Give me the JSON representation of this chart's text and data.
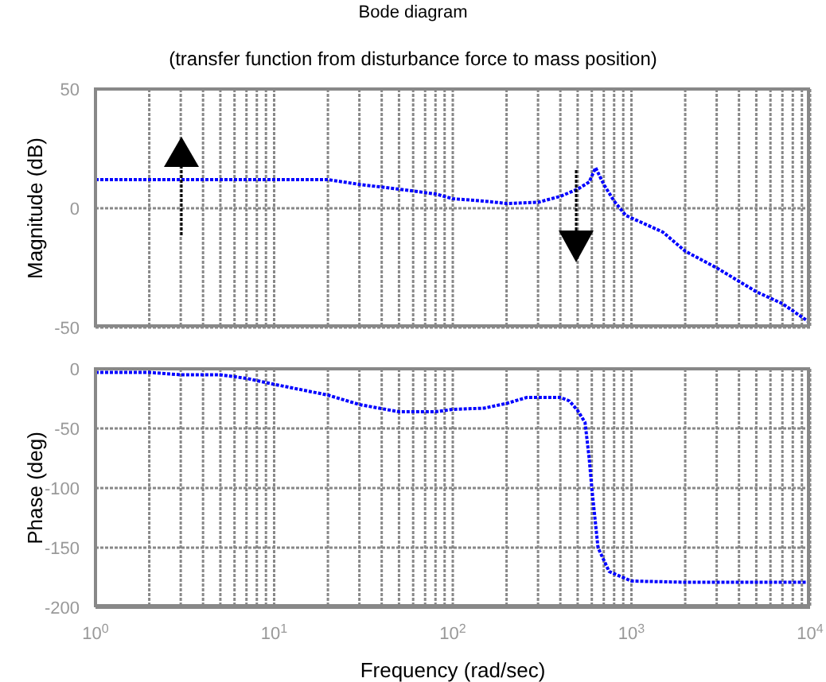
{
  "chart_data": [
    {
      "type": "line",
      "title": "Bode diagram",
      "subtitle": "(transfer function from disturbance force to mass position)",
      "ylabel": "Magnitude (dB)",
      "log": "x",
      "grid": true,
      "tick_labels": "y",
      "line_style": "dotted",
      "marker": "none",
      "xlim": [
        1,
        10000
      ],
      "xticks": [
        {
          "value": 1,
          "label": null
        },
        {
          "value": 2,
          "label": null
        },
        {
          "value": 3,
          "label": null
        },
        {
          "value": 4,
          "label": null
        },
        {
          "value": 5,
          "label": null
        },
        {
          "value": 6,
          "label": null
        },
        {
          "value": 7,
          "label": null
        },
        {
          "value": 8,
          "label": null
        },
        {
          "value": 9,
          "label": null
        },
        {
          "value": 10,
          "label": null
        },
        {
          "value": 20,
          "label": null
        },
        {
          "value": 30,
          "label": null
        },
        {
          "value": 40,
          "label": null
        },
        {
          "value": 50,
          "label": null
        },
        {
          "value": 60,
          "label": null
        },
        {
          "value": 70,
          "label": null
        },
        {
          "value": 80,
          "label": null
        },
        {
          "value": 90,
          "label": null
        },
        {
          "value": 100,
          "label": null
        },
        {
          "value": 200,
          "label": null
        },
        {
          "value": 300,
          "label": null
        },
        {
          "value": 400,
          "label": null
        },
        {
          "value": 500,
          "label": null
        },
        {
          "value": 600,
          "label": null
        },
        {
          "value": 700,
          "label": null
        },
        {
          "value": 800,
          "label": null
        },
        {
          "value": 900,
          "label": null
        },
        {
          "value": 1000,
          "label": null
        },
        {
          "value": 2000,
          "label": null
        },
        {
          "value": 3000,
          "label": null
        },
        {
          "value": 4000,
          "label": null
        },
        {
          "value": 5000,
          "label": null
        },
        {
          "value": 6000,
          "label": null
        },
        {
          "value": 7000,
          "label": null
        },
        {
          "value": 8000,
          "label": null
        },
        {
          "value": 9000,
          "label": null
        },
        {
          "value": 10000,
          "label": null
        }
      ],
      "ylim": [
        -50,
        50
      ],
      "yticks": [
        -50,
        0,
        50
      ],
      "series": [
        {
          "color": "#0000ff",
          "x": [
            1,
            5,
            10,
            20,
            30,
            50,
            80,
            100,
            150,
            200,
            300,
            400,
            500,
            580,
            630,
            700,
            800,
            930,
            1500,
            2000,
            3000,
            5000,
            7000,
            10000
          ],
          "values": [
            12,
            12,
            12,
            12,
            10,
            8,
            6,
            4,
            3,
            2,
            2.5,
            5,
            8,
            11,
            17,
            10,
            3,
            -3,
            -10,
            -18,
            -25,
            -35,
            -40,
            -48
          ]
        }
      ]
    },
    {
      "type": "line",
      "ylabel": "Phase (deg)",
      "xlabel": "Frequency (rad/sec)",
      "log": "x",
      "grid": true,
      "line_style": "dotted",
      "marker": "none",
      "xlim": [
        1,
        10000
      ],
      "xticks": [
        {
          "value": 1,
          "label": "10$^{0}$"
        },
        {
          "value": 2,
          "label": null
        },
        {
          "value": 3,
          "label": null
        },
        {
          "value": 4,
          "label": null
        },
        {
          "value": 5,
          "label": null
        },
        {
          "value": 6,
          "label": null
        },
        {
          "value": 7,
          "label": null
        },
        {
          "value": 8,
          "label": null
        },
        {
          "value": 9,
          "label": null
        },
        {
          "value": 10,
          "label": "10$^{1}$"
        },
        {
          "value": 20,
          "label": null
        },
        {
          "value": 30,
          "label": null
        },
        {
          "value": 40,
          "label": null
        },
        {
          "value": 50,
          "label": null
        },
        {
          "value": 60,
          "label": null
        },
        {
          "value": 70,
          "label": null
        },
        {
          "value": 80,
          "label": null
        },
        {
          "value": 90,
          "label": null
        },
        {
          "value": 100,
          "label": "10$^{2}$"
        },
        {
          "value": 200,
          "label": null
        },
        {
          "value": 300,
          "label": null
        },
        {
          "value": 400,
          "label": null
        },
        {
          "value": 500,
          "label": null
        },
        {
          "value": 600,
          "label": null
        },
        {
          "value": 700,
          "label": null
        },
        {
          "value": 800,
          "label": null
        },
        {
          "value": 900,
          "label": null
        },
        {
          "value": 1000,
          "label": "10$^{3}$"
        },
        {
          "value": 2000,
          "label": null
        },
        {
          "value": 3000,
          "label": null
        },
        {
          "value": 4000,
          "label": null
        },
        {
          "value": 5000,
          "label": null
        },
        {
          "value": 6000,
          "label": null
        },
        {
          "value": 7000,
          "label": null
        },
        {
          "value": 8000,
          "label": null
        },
        {
          "value": 9000,
          "label": null
        },
        {
          "value": 10000,
          "label": "10$^{4}$"
        }
      ],
      "ylim": [
        -200,
        0
      ],
      "yticks": [
        -200,
        -150,
        -100,
        -50,
        0
      ],
      "series": [
        {
          "color": "#0000ff",
          "x": [
            1,
            2,
            3,
            5,
            7,
            10,
            20,
            30,
            50,
            80,
            100,
            150,
            200,
            260,
            400,
            450,
            500,
            550,
            580,
            600,
            650,
            750,
            1000,
            2000,
            10000
          ],
          "values": [
            -3,
            -3,
            -5,
            -5,
            -8,
            -13,
            -22,
            -30,
            -36,
            -36,
            -34,
            -33,
            -29,
            -24,
            -24,
            -27,
            -35,
            -45,
            -75,
            -100,
            -150,
            -170,
            -178,
            -179,
            -179
          ]
        }
      ]
    }
  ]
}
